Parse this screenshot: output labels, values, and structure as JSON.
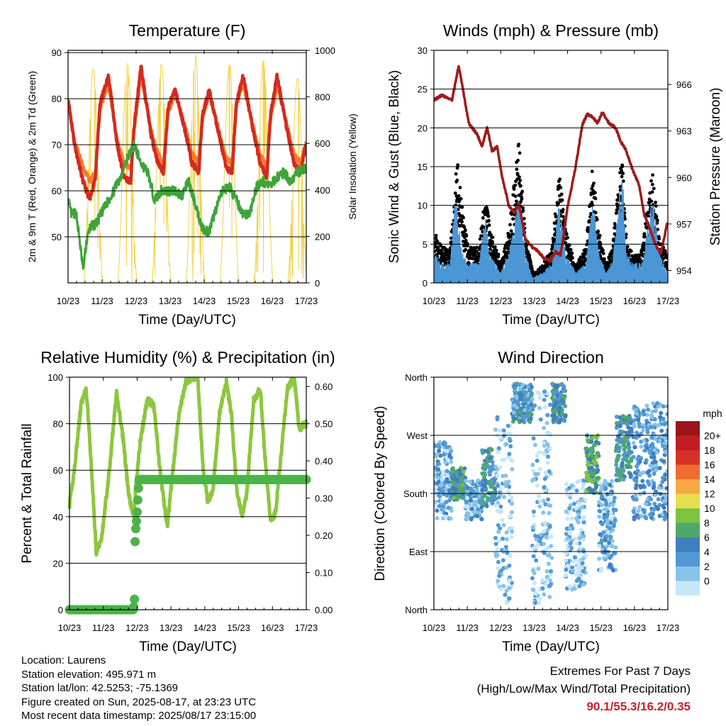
{
  "colors": {
    "temp_2m": "#d42a20",
    "temp_9m": "#f47c2a",
    "dewpoint": "#3ea43a",
    "solar": "#f3d24a",
    "wind": "#4b97d6",
    "gust": "#000000",
    "pressure": "#a01b1b",
    "rh": "#8dc63f",
    "precip": "#4bb34a"
  },
  "x_tick_labels": [
    "10/23",
    "11/23",
    "12/23",
    "13/23",
    "14/23",
    "15/23",
    "16/23",
    "17/23"
  ],
  "x_axis_label": "Time (Day/UTC)",
  "chart_data": [
    {
      "id": "temperature",
      "type": "line",
      "title": "Temperature (F)",
      "xlabel": "Time (Day/UTC)",
      "ylabel": "2m & 9m T (Red, Orange) & 2m Td (Green)",
      "ylabel_right": "Solar Insolation (Yellow)",
      "x_range_days": [
        10.958,
        17.958
      ],
      "ylim": [
        40,
        90.5
      ],
      "ylim_right": [
        0,
        1000
      ],
      "yticks": [
        50,
        60,
        70,
        80,
        90
      ],
      "yticks_right": [
        0,
        200,
        400,
        600,
        800,
        1000
      ],
      "series": [
        {
          "name": "2m T",
          "x": [
            10.96,
            11.15,
            11.4,
            11.6,
            11.76,
            11.9,
            12.15,
            12.4,
            12.6,
            12.8,
            12.9,
            13.1,
            13.4,
            13.6,
            13.76,
            13.9,
            14.1,
            14.4,
            14.6,
            14.8,
            14.9,
            15.1,
            15.4,
            15.6,
            15.78,
            15.9,
            16.1,
            16.4,
            16.6,
            16.8,
            16.9,
            17.1,
            17.4,
            17.6,
            17.8,
            17.96
          ],
          "values": [
            80,
            70,
            62,
            58,
            63,
            79,
            85,
            70,
            63,
            62,
            74,
            87,
            72,
            66,
            64,
            78,
            82,
            73,
            66,
            64,
            76,
            82,
            72,
            65,
            64,
            79,
            85,
            73,
            66,
            63,
            76,
            85,
            73,
            66,
            64,
            71
          ]
        },
        {
          "name": "9m T",
          "x": [
            10.96,
            11.15,
            11.4,
            11.6,
            11.76,
            11.9,
            12.15,
            12.4,
            12.6,
            12.8,
            12.9,
            13.1,
            13.4,
            13.6,
            13.76,
            13.9,
            14.1,
            14.4,
            14.6,
            14.8,
            14.9,
            15.1,
            15.4,
            15.6,
            15.78,
            15.9,
            16.1,
            16.4,
            16.6,
            16.8,
            16.9,
            17.1,
            17.4,
            17.6,
            17.8,
            17.96
          ],
          "values": [
            79,
            71,
            65,
            62,
            64,
            78,
            83,
            71,
            66,
            65,
            73,
            85,
            73,
            68,
            66,
            77,
            81,
            74,
            68,
            66,
            75,
            81,
            73,
            67,
            66,
            78,
            83,
            74,
            68,
            65,
            75,
            83,
            74,
            68,
            66,
            71
          ]
        },
        {
          "name": "2m Td",
          "x": [
            10.96,
            11.05,
            11.2,
            11.4,
            11.5,
            11.6,
            11.8,
            12.0,
            12.3,
            12.5,
            12.7,
            12.9,
            13.1,
            13.3,
            13.5,
            13.7,
            13.9,
            14.1,
            14.3,
            14.5,
            14.7,
            14.9,
            15.1,
            15.3,
            15.5,
            15.7,
            15.9,
            16.1,
            16.3,
            16.5,
            16.7,
            16.9,
            17.1,
            17.3,
            17.5,
            17.7,
            17.96
          ],
          "values": [
            58,
            55,
            55,
            43,
            49,
            52,
            53,
            56,
            60,
            63,
            67,
            70,
            66,
            64,
            58,
            60,
            60,
            60,
            59,
            62,
            57,
            52,
            51,
            56,
            60,
            61,
            58,
            55,
            55,
            61,
            62,
            61,
            63,
            64,
            62,
            64,
            65
          ]
        },
        {
          "name": "Solar Insolation",
          "axis": "right",
          "day_peaks": [
            11.7,
            12.7,
            13.7,
            14.7,
            15.7,
            16.7,
            17.7
          ],
          "peak_values": [
            920,
            950,
            940,
            980,
            940,
            960,
            880
          ]
        }
      ]
    },
    {
      "id": "winds",
      "type": "line",
      "title": "Winds (mph) & Pressure (mb)",
      "xlabel": "Time (Day/UTC)",
      "ylabel": "Sonic Wind & Gust (Blue, Black)",
      "ylabel_right": "Station Pressure (Maroon)",
      "x_range_days": [
        10.958,
        17.958
      ],
      "ylim": [
        0,
        30
      ],
      "ylim_right": [
        953.2,
        968.2
      ],
      "yticks": [
        0,
        5,
        10,
        15,
        20,
        25,
        30
      ],
      "yticks_right": [
        954,
        957,
        960,
        963,
        966
      ],
      "series": [
        {
          "name": "Sonic Wind",
          "x": [
            10.96,
            11.2,
            11.45,
            11.6,
            11.8,
            12.0,
            12.3,
            12.5,
            12.6,
            12.8,
            12.95,
            13.2,
            13.5,
            13.7,
            13.9,
            14.2,
            14.5,
            14.7,
            14.9,
            15.2,
            15.5,
            15.7,
            15.9,
            16.1,
            16.3,
            16.6,
            16.7,
            16.9,
            17.2,
            17.5,
            17.7,
            17.96
          ],
          "values": [
            3,
            2,
            2,
            9,
            3,
            2,
            2,
            7,
            3,
            2,
            1,
            3,
            9,
            3,
            0.5,
            1,
            2,
            8,
            3,
            1,
            2,
            9,
            3,
            1,
            2,
            12,
            3,
            2,
            2,
            9,
            3,
            1
          ]
        },
        {
          "name": "Gust",
          "x": [
            10.96,
            11.2,
            11.45,
            11.65,
            11.85,
            12.0,
            12.3,
            12.5,
            12.65,
            12.85,
            12.95,
            13.2,
            13.5,
            13.7,
            13.95,
            14.2,
            14.5,
            14.7,
            14.9,
            15.2,
            15.5,
            15.7,
            15.9,
            16.1,
            16.3,
            16.6,
            16.7,
            16.9,
            17.2,
            17.5,
            17.7,
            17.96
          ],
          "values": [
            6,
            4,
            4,
            14,
            7,
            4,
            4,
            10,
            6,
            4,
            2,
            6,
            16,
            5,
            1,
            2,
            4,
            13,
            6,
            2,
            4,
            13,
            6,
            2,
            4,
            16,
            6,
            3,
            4,
            13,
            5,
            3
          ]
        },
        {
          "name": "Station Pressure",
          "axis": "right",
          "x": [
            10.96,
            11.2,
            11.5,
            11.7,
            11.8,
            12.0,
            12.25,
            12.4,
            12.55,
            12.7,
            12.85,
            13.0,
            13.2,
            13.35,
            13.5,
            13.7,
            13.9,
            14.05,
            14.25,
            14.45,
            14.6,
            14.75,
            14.95,
            15.2,
            15.4,
            15.55,
            15.7,
            15.85,
            16.0,
            16.2,
            16.4,
            16.55,
            16.7,
            16.9,
            17.1,
            17.25,
            17.45,
            17.6,
            17.75,
            17.96
          ],
          "values": [
            965,
            965.3,
            965,
            967.2,
            966,
            963.5,
            962.8,
            962,
            963.2,
            961.7,
            962,
            960,
            958.2,
            957.7,
            958.3,
            956,
            955.5,
            955.3,
            954.8,
            954.6,
            955.2,
            955,
            958,
            960.7,
            963.4,
            964.1,
            963.9,
            963.5,
            964.2,
            963.5,
            963.2,
            962.3,
            961.8,
            960.5,
            959.5,
            957.6,
            956.5,
            955.6,
            955.1,
            957.3
          ]
        }
      ]
    },
    {
      "id": "humidity",
      "type": "line",
      "title": "Relative Humidity (%) & Precipitation (in)",
      "xlabel": "Time (Day/UTC)",
      "ylabel": "Percent & Total Rainfall",
      "x_range_days": [
        10.958,
        17.958
      ],
      "ylim": [
        0,
        100
      ],
      "ylim_right": [
        0,
        0.625
      ],
      "yticks": [
        0,
        20,
        40,
        60,
        80,
        100
      ],
      "yticks_right": [
        0.0,
        0.1,
        0.2,
        0.3,
        0.4,
        0.5,
        0.6
      ],
      "series": [
        {
          "name": "Relative Humidity",
          "x": [
            10.96,
            11.1,
            11.3,
            11.45,
            11.55,
            11.75,
            11.9,
            12.1,
            12.35,
            12.55,
            12.7,
            12.85,
            12.95,
            13.05,
            13.25,
            13.45,
            13.6,
            13.7,
            13.85,
            14.0,
            14.2,
            14.4,
            14.6,
            14.75,
            14.9,
            15.05,
            15.2,
            15.4,
            15.6,
            15.75,
            15.9,
            16.05,
            16.2,
            16.4,
            16.6,
            16.75,
            16.9,
            17.05,
            17.2,
            17.4,
            17.6,
            17.75,
            17.96
          ],
          "values": [
            45,
            60,
            88,
            95,
            75,
            25,
            30,
            55,
            93,
            73,
            50,
            40,
            58,
            72,
            90,
            88,
            65,
            52,
            36,
            58,
            85,
            98,
            100,
            100,
            62,
            46,
            52,
            85,
            98,
            83,
            52,
            40,
            50,
            90,
            95,
            63,
            38,
            42,
            65,
            95,
            100,
            78,
            80
          ]
        },
        {
          "name": "Total Precipitation",
          "axis": "right",
          "x": [
            10.96,
            12.85,
            12.88,
            12.9,
            12.95,
            13.0,
            13.02,
            17.96
          ],
          "values": [
            0,
            0,
            0.03,
            0.2,
            0.25,
            0.33,
            0.35,
            0.35
          ]
        }
      ]
    },
    {
      "id": "direction",
      "type": "scatter",
      "title": "Wind Direction",
      "xlabel": "Time (Day/UTC)",
      "ylabel": "Direction (Colored By Speed)",
      "x_range_days": [
        10.958,
        17.958
      ],
      "ylim": [
        0,
        360
      ],
      "ytick_labels": [
        "North",
        "East",
        "South",
        "West",
        "North"
      ],
      "yticks": [
        0,
        90,
        180,
        270,
        360
      ],
      "colorbar_unit": "mph",
      "colorbar_labels": [
        "0",
        "2",
        "4",
        "6",
        "8",
        "10",
        "12",
        "14",
        "16",
        "18",
        "20+"
      ],
      "colorbar_colors": [
        "#c6e7f7",
        "#87c3ea",
        "#5298d4",
        "#3f7fbf",
        "#4ea869",
        "#7ec242",
        "#e5df4b",
        "#f7a846",
        "#ef6b2f",
        "#d83028",
        "#c01e24",
        "#9b1518"
      ],
      "regimes": [
        {
          "x0": 10.96,
          "x1": 11.5,
          "dir_lo": 140,
          "dir_hi": 260,
          "speed": 3
        },
        {
          "x0": 11.5,
          "x1": 11.9,
          "dir_lo": 170,
          "dir_hi": 220,
          "speed": 7
        },
        {
          "x0": 11.9,
          "x1": 12.4,
          "dir_lo": 140,
          "dir_hi": 200,
          "speed": 3
        },
        {
          "x0": 12.4,
          "x1": 12.8,
          "dir_lo": 160,
          "dir_hi": 250,
          "speed": 6
        },
        {
          "x0": 12.8,
          "x1": 13.3,
          "dir_lo": 10,
          "dir_hi": 300,
          "speed": 2
        },
        {
          "x0": 13.3,
          "x1": 13.9,
          "dir_lo": 290,
          "dir_hi": 350,
          "speed": 5
        },
        {
          "x0": 13.9,
          "x1": 14.5,
          "dir_lo": 10,
          "dir_hi": 340,
          "speed": 2
        },
        {
          "x0": 14.5,
          "x1": 14.9,
          "dir_lo": 290,
          "dir_hi": 350,
          "speed": 6
        },
        {
          "x0": 14.9,
          "x1": 15.5,
          "dir_lo": 30,
          "dir_hi": 200,
          "speed": 2
        },
        {
          "x0": 15.5,
          "x1": 15.9,
          "dir_lo": 180,
          "dir_hi": 270,
          "speed": 8
        },
        {
          "x0": 15.9,
          "x1": 16.4,
          "dir_lo": 60,
          "dir_hi": 200,
          "speed": 3
        },
        {
          "x0": 16.4,
          "x1": 16.9,
          "dir_lo": 200,
          "dir_hi": 300,
          "speed": 6
        },
        {
          "x0": 16.9,
          "x1": 17.96,
          "dir_lo": 140,
          "dir_hi": 320,
          "speed": 4
        }
      ]
    }
  ],
  "info": {
    "location": "Location: Laurens",
    "elevation": "Station elevation: 495.971 m",
    "latlon": "Station lat/lon: 42.5253; -75.1369",
    "created": "Figure created on Sun, 2025-08-17, at 23:23 UTC",
    "latest": "Most recent data timestamp: 2025/08/17 23:15:00"
  },
  "extremes": {
    "title": "Extremes For Past 7 Days",
    "subtitle": "(High/Low/Max Wind/Total Precipitation)",
    "values": "90.1/55.3/16.2/0.35"
  }
}
